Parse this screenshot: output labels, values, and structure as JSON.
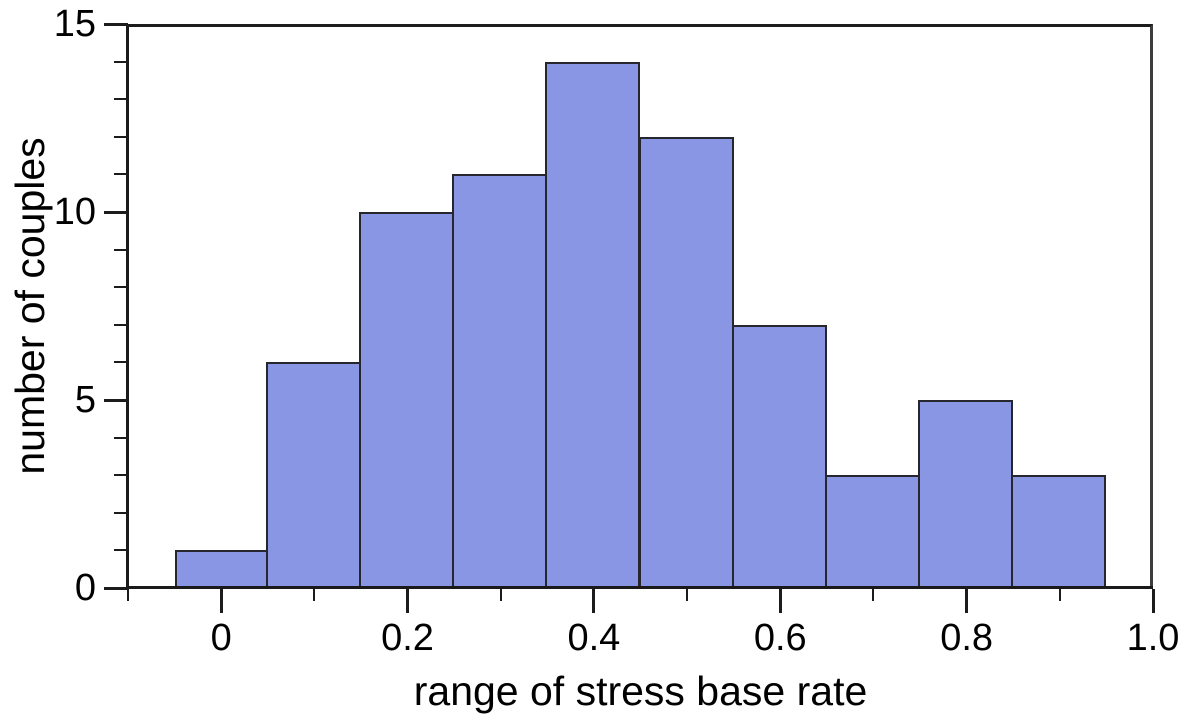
{
  "chart_data": {
    "type": "bar",
    "subtype": "histogram",
    "title": "",
    "xlabel": "range of stress base rate",
    "ylabel": "number of couples",
    "bin_width": 0.1,
    "bin_centers": [
      0.0,
      0.1,
      0.2,
      0.3,
      0.4,
      0.5,
      0.6,
      0.7,
      0.8,
      0.9
    ],
    "values": [
      1,
      6,
      10,
      11,
      14,
      12,
      7,
      3,
      5,
      3
    ],
    "xlim": [
      -0.1,
      1.0
    ],
    "ylim": [
      0,
      15
    ],
    "x_major_ticks": [
      0,
      0.2,
      0.4,
      0.6,
      0.8,
      1.0
    ],
    "x_major_tick_labels": [
      "0",
      "0.2",
      "0.4",
      "0.6",
      "0.8",
      "1.0"
    ],
    "x_minor_step": 0.1,
    "y_major_ticks": [
      0,
      5,
      10,
      15
    ],
    "y_major_tick_labels": [
      "0",
      "5",
      "10",
      "15"
    ],
    "y_minor_step": 1,
    "grid": false,
    "legend": null,
    "frame": true,
    "colors": {
      "bar_fill": "#8996e3",
      "bar_edge": "#26262e",
      "axis": "#1a1a1a",
      "text": "#000000",
      "background": "#ffffff"
    }
  }
}
